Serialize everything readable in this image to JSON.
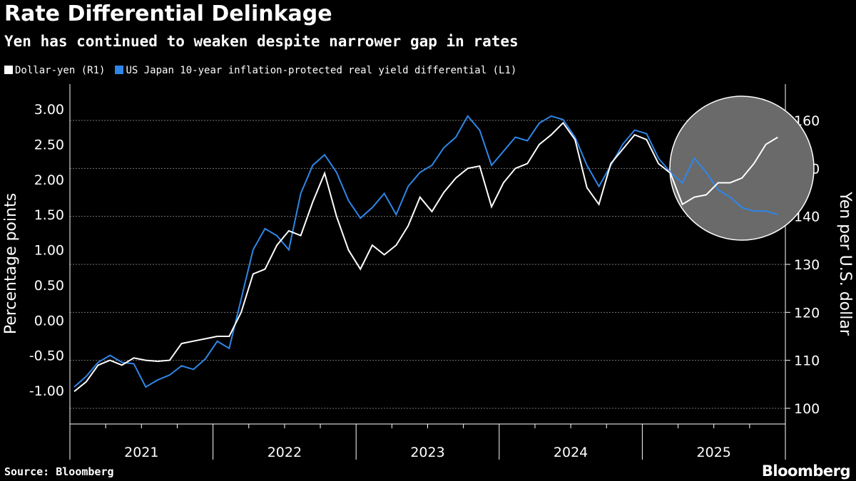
{
  "title": "Rate Differential Delinkage",
  "subtitle": "Yen has continued to weaken despite narrower gap in rates",
  "source": "Source: Bloomberg",
  "logo": "Bloomberg",
  "colors": {
    "dollar_yen": "#ffffff",
    "real_yield_diff": "#2f86e8",
    "highlight_circle": "#6a6a6a"
  },
  "chart_data": {
    "type": "line",
    "title": "Rate Differential Delinkage",
    "xlabel": "",
    "x_tick_labels": [
      "2021",
      "2022",
      "2023",
      "2024",
      "2025"
    ],
    "left_axis": {
      "label": "Percentage points",
      "ticks": [
        "-1.00",
        "-0.50",
        "0.00",
        "0.50",
        "1.00",
        "1.50",
        "2.00",
        "2.50",
        "3.00"
      ],
      "range": [
        -1.2,
        3.3
      ]
    },
    "right_axis": {
      "label": "Yen per U.S. dollar",
      "ticks": [
        "100",
        "110",
        "120",
        "130",
        "140",
        "150",
        "160"
      ],
      "range": [
        97,
        167
      ]
    },
    "grid": "dashed horizontal at right-axis ticks",
    "legend_placement": "top-left",
    "annotation": "circle highlighting 2025 divergence",
    "x": [
      "2021-01",
      "2021-02",
      "2021-03",
      "2021-04",
      "2021-05",
      "2021-06",
      "2021-07",
      "2021-08",
      "2021-09",
      "2021-10",
      "2021-11",
      "2021-12",
      "2022-01",
      "2022-02",
      "2022-03",
      "2022-04",
      "2022-05",
      "2022-06",
      "2022-07",
      "2022-08",
      "2022-09",
      "2022-10",
      "2022-11",
      "2022-12",
      "2023-01",
      "2023-02",
      "2023-03",
      "2023-04",
      "2023-05",
      "2023-06",
      "2023-07",
      "2023-08",
      "2023-09",
      "2023-10",
      "2023-11",
      "2023-12",
      "2024-01",
      "2024-02",
      "2024-03",
      "2024-04",
      "2024-05",
      "2024-06",
      "2024-07",
      "2024-08",
      "2024-09",
      "2024-10",
      "2024-11",
      "2024-12",
      "2025-01",
      "2025-02",
      "2025-03",
      "2025-04",
      "2025-05",
      "2025-06",
      "2025-07",
      "2025-08",
      "2025-09",
      "2025-10",
      "2025-11",
      "2025-12"
    ],
    "series": [
      {
        "name": "Dollar-yen (R1)",
        "axis": "right",
        "values": [
          103.5,
          105.5,
          109,
          110,
          109,
          110.5,
          110,
          109.8,
          110,
          113.5,
          114,
          114.5,
          115,
          115,
          120,
          128,
          129,
          134,
          137,
          136,
          143,
          149,
          140,
          133,
          129,
          134,
          132,
          134,
          138,
          144,
          141,
          145,
          148,
          150,
          150.5,
          142,
          147,
          150,
          151,
          155,
          157,
          159.5,
          156,
          146,
          142.5,
          151,
          154,
          157,
          156,
          151,
          149,
          142.5,
          144,
          144.5,
          147,
          147,
          148,
          151,
          155,
          156.5
        ]
      },
      {
        "name": "US Japan 10-year inflation-protected real yield differential (L1)",
        "axis": "left",
        "values": [
          -0.95,
          -0.8,
          -0.6,
          -0.5,
          -0.6,
          -0.62,
          -0.95,
          -0.85,
          -0.78,
          -0.65,
          -0.7,
          -0.55,
          -0.3,
          -0.4,
          0.3,
          1.0,
          1.3,
          1.2,
          1.0,
          1.8,
          2.2,
          2.35,
          2.1,
          1.7,
          1.45,
          1.6,
          1.8,
          1.5,
          1.9,
          2.1,
          2.2,
          2.45,
          2.6,
          2.9,
          2.7,
          2.2,
          2.4,
          2.6,
          2.55,
          2.8,
          2.9,
          2.85,
          2.6,
          2.2,
          1.9,
          2.2,
          2.5,
          2.7,
          2.65,
          2.3,
          2.1,
          1.95,
          2.3,
          2.1,
          1.85,
          1.75,
          1.6,
          1.55,
          1.55,
          1.5
        ]
      }
    ]
  }
}
